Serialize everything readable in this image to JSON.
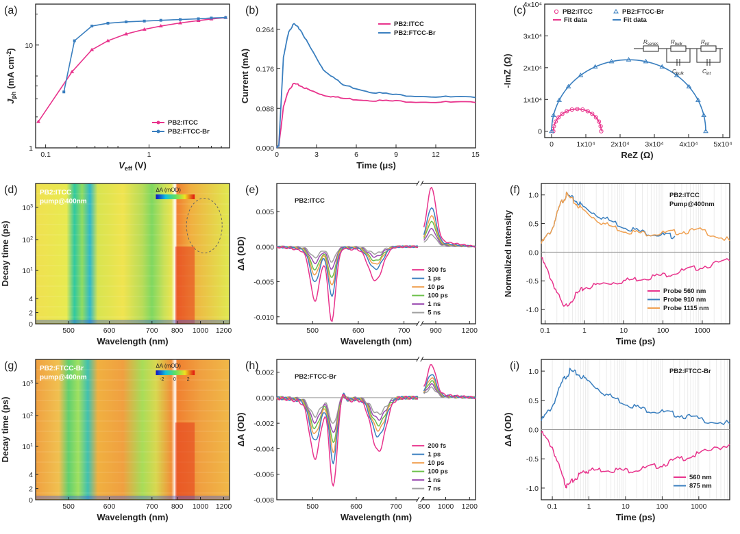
{
  "colors": {
    "pink": "#e8338c",
    "blue": "#3a7fbf",
    "orange": "#f0a050",
    "green": "#6cc04a",
    "purple": "#9a4ab0",
    "gray": "#a0a0a0"
  },
  "chart_data": [
    {
      "id": "a",
      "panel_label": "(a)",
      "type": "line",
      "xscale": "log",
      "yscale": "log",
      "xlabel": "V",
      "xlabel_sub": "eff",
      "xlabel_unit": " (V)",
      "ylabel": "J",
      "ylabel_sub": "ph",
      "ylabel_unit": " (mA cm",
      "ylabel_sup": "-2",
      "ylabel_end": ")",
      "xlim": [
        0.08,
        6
      ],
      "ylim": [
        1,
        25
      ],
      "xticks": [
        0.1,
        1
      ],
      "xtick_labels": [
        "0.1",
        "1"
      ],
      "yticks": [
        1,
        10
      ],
      "ytick_labels": [
        "1",
        "10"
      ],
      "legend": [
        "PB2:ITCC",
        "PB2:FTCC-Br"
      ],
      "legend_position": "lower-right",
      "series": [
        {
          "name": "PB2:ITCC",
          "color": "pink",
          "marker": "triangle",
          "x": [
            0.085,
            0.18,
            0.28,
            0.4,
            0.6,
            0.9,
            1.3,
            2,
            3,
            4,
            5.5
          ],
          "y": [
            1.8,
            5.5,
            9.0,
            11.0,
            12.8,
            14.2,
            15.3,
            16.4,
            17.3,
            17.9,
            18.5
          ]
        },
        {
          "name": "PB2:FTCC-Br",
          "color": "blue",
          "marker": "square",
          "x": [
            0.15,
            0.19,
            0.28,
            0.4,
            0.6,
            0.9,
            1.3,
            2,
            3,
            4,
            5.5
          ],
          "y": [
            3.5,
            11.0,
            15.3,
            16.3,
            16.8,
            17.1,
            17.4,
            17.7,
            18.0,
            18.3,
            18.5
          ]
        }
      ]
    },
    {
      "id": "b",
      "panel_label": "(b)",
      "type": "line",
      "xlabel": "Time (μs)",
      "ylabel": "Current (mA)",
      "xlim": [
        0,
        15
      ],
      "ylim": [
        0,
        0.32
      ],
      "xticks": [
        0,
        3,
        6,
        9,
        12,
        15
      ],
      "xtick_labels": [
        "0",
        "3",
        "6",
        "9",
        "12",
        "15"
      ],
      "yticks": [
        0,
        0.088,
        0.176,
        0.264
      ],
      "ytick_labels": [
        "0.000",
        "0.088",
        "0.176",
        "0.264"
      ],
      "legend": [
        "PB2:ITCC",
        "PB2:FTCC-Br"
      ],
      "legend_position": "top-right",
      "series": [
        {
          "name": "PB2:ITCC",
          "color": "pink",
          "x": [
            0,
            0.15,
            0.5,
            0.9,
            1.3,
            1.8,
            2.5,
            3.5,
            5,
            7,
            9,
            12,
            15
          ],
          "y": [
            0,
            0.005,
            0.09,
            0.13,
            0.143,
            0.138,
            0.128,
            0.118,
            0.11,
            0.106,
            0.104,
            0.102,
            0.101
          ]
        },
        {
          "name": "PB2:FTCC-Br",
          "color": "blue",
          "x": [
            0,
            0.15,
            0.5,
            0.9,
            1.3,
            1.8,
            2.5,
            3.5,
            5,
            7,
            9,
            12,
            15
          ],
          "y": [
            0,
            0.005,
            0.2,
            0.26,
            0.276,
            0.262,
            0.225,
            0.175,
            0.14,
            0.125,
            0.118,
            0.114,
            0.112
          ]
        }
      ]
    },
    {
      "id": "c",
      "panel_label": "(c)",
      "type": "scatter",
      "xlabel": "ReZ (Ω)",
      "ylabel": "-ImZ (Ω)",
      "xlim": [
        -2000,
        52000
      ],
      "ylim": [
        -2000,
        40000
      ],
      "xticks": [
        0,
        10000,
        20000,
        30000,
        40000,
        50000
      ],
      "xtick_labels": [
        "0",
        "1x10⁴",
        "2x10⁴",
        "3x10⁴",
        "4x10⁴",
        "5x10⁴"
      ],
      "yticks": [
        0,
        10000,
        20000,
        30000,
        40000
      ],
      "ytick_labels": [
        "0",
        "1x10⁴",
        "2x10⁴",
        "3x10⁴",
        "4x10⁴"
      ],
      "legend": [
        "PB2:ITCC",
        "PB2:FTCC-Br",
        "Fit data",
        "Fit data"
      ],
      "legend_position": "top",
      "circuit_labels": [
        "R",
        "series",
        "R",
        "bulk",
        "R",
        "int",
        "C",
        "bulk",
        "C",
        "int"
      ],
      "series": [
        {
          "name": "PB2:ITCC",
          "color": "pink",
          "marker": "circle",
          "center": 7500,
          "radius": 7000
        },
        {
          "name": "PB2:FTCC-Br",
          "color": "blue",
          "marker": "triangle",
          "center": 22500,
          "radius": 22500
        }
      ]
    },
    {
      "id": "d",
      "panel_label": "(d)",
      "type": "heatmap",
      "xlabel": "Wavelength (nm)",
      "ylabel": "Decay time (ps)",
      "xtick_labels": [
        "500",
        "600",
        "700",
        "800",
        "1000",
        "1200"
      ],
      "ytick_labels": [
        "0",
        "2",
        "4",
        "10",
        "10",
        "10"
      ],
      "ytick_sup": [
        "",
        "",
        "",
        "1",
        "2",
        "3"
      ],
      "title": "PB2:ITCC",
      "subtitle": "pump@400nm",
      "colorbar_label": "ΔA (mOD)",
      "bands_nm": [
        520,
        560,
        680,
        900
      ]
    },
    {
      "id": "e",
      "panel_label": "(e)",
      "type": "line",
      "xlabel": "Wavelength (nm)",
      "ylabel": "ΔA (OD)",
      "title": "PB2:ITCC",
      "ylim": [
        -0.011,
        0.009
      ],
      "yticks": [
        -0.01,
        -0.005,
        0.0,
        0.005
      ],
      "ytick_labels": [
        "-0.010",
        "-0.005",
        "0.000",
        "0.005"
      ],
      "xtick_labels": [
        "500",
        "600",
        "700",
        "900",
        "1200"
      ],
      "legend": [
        "300 fs",
        "1 ps",
        "10 ps",
        "100 ps",
        "1 ns",
        "5 ns"
      ],
      "legend_position": "lower-right",
      "series": [
        {
          "name": "300 fs",
          "color": "pink",
          "scale": 1.0
        },
        {
          "name": "1 ps",
          "color": "blue",
          "scale": 0.66
        },
        {
          "name": "10 ps",
          "color": "orange",
          "scale": 0.52
        },
        {
          "name": "100 ps",
          "color": "green",
          "scale": 0.42
        },
        {
          "name": "1 ns",
          "color": "purple",
          "scale": 0.3
        },
        {
          "name": "5 ns",
          "color": "gray",
          "scale": 0.2
        }
      ]
    },
    {
      "id": "f",
      "panel_label": "(f)",
      "type": "line",
      "xscale": "log",
      "xlabel": "Time (ps)",
      "ylabel": "Normalized Intensity",
      "title": "PB2:ITCC",
      "subtitle": "Pump@400nm",
      "xlim": [
        0.08,
        5000
      ],
      "ylim": [
        -1.25,
        1.2
      ],
      "xticks": [
        0.1,
        1,
        10,
        100,
        1000
      ],
      "xtick_labels": [
        "0.1",
        "1",
        "10",
        "100",
        "1000"
      ],
      "yticks": [
        -1.0,
        -0.5,
        0.0,
        0.5,
        1.0
      ],
      "ytick_labels": [
        "-1.0",
        "-0.5",
        "0.0",
        "0.5",
        "1.0"
      ],
      "legend": [
        "Probe 560 nm",
        "Probe 910 nm",
        "Probe 1115 nm"
      ],
      "legend_position": "lower-right",
      "series": [
        {
          "name": "Probe 560 nm",
          "color": "pink",
          "x": [
            0.08,
            0.15,
            0.3,
            0.6,
            1,
            3,
            10,
            30,
            100,
            300,
            1000,
            5000
          ],
          "y": [
            -0.1,
            -0.5,
            -0.98,
            -0.75,
            -0.62,
            -0.55,
            -0.5,
            -0.45,
            -0.4,
            -0.33,
            -0.25,
            -0.15
          ]
        },
        {
          "name": "Probe 910 nm",
          "color": "blue",
          "x": [
            0.08,
            0.15,
            0.25,
            0.35,
            0.6,
            1,
            3,
            10,
            30,
            100,
            200
          ],
          "y": [
            0.15,
            0.4,
            0.85,
            1.0,
            0.9,
            0.78,
            0.6,
            0.45,
            0.35,
            0.3,
            0.28
          ]
        },
        {
          "name": "Probe 1115 nm",
          "color": "orange",
          "x": [
            0.08,
            0.15,
            0.25,
            0.35,
            0.6,
            1,
            3,
            10,
            30,
            100,
            300,
            1000,
            5000
          ],
          "y": [
            0.15,
            0.4,
            0.85,
            1.0,
            0.85,
            0.72,
            0.5,
            0.38,
            0.33,
            0.33,
            0.36,
            0.38,
            0.2
          ]
        }
      ]
    },
    {
      "id": "g",
      "panel_label": "(g)",
      "type": "heatmap",
      "xlabel": "Wavelength (nm)",
      "ylabel": "Decay time (ps)",
      "xtick_labels": [
        "500",
        "600",
        "700",
        "800",
        "1000",
        "1200"
      ],
      "ytick_labels": [
        "0",
        "2",
        "4",
        "10",
        "10",
        "10"
      ],
      "ytick_sup": [
        "",
        "",
        "",
        "1",
        "2",
        "3"
      ],
      "title": "PB2:FTCC-Br",
      "subtitle": "pump@400nm",
      "colorbar_label": "ΔA (mOD)",
      "colorbar_ticks": [
        "-2",
        "0",
        "2"
      ],
      "bands_nm": [
        520,
        560,
        680
      ]
    },
    {
      "id": "h",
      "panel_label": "(h)",
      "type": "line",
      "xlabel": "Wavelength (nm)",
      "ylabel": "ΔA (OD)",
      "title": "PB2:FTCC-Br",
      "ylim": [
        -0.008,
        0.003
      ],
      "yticks": [
        -0.008,
        -0.006,
        -0.004,
        -0.002,
        0.0,
        0.002
      ],
      "ytick_labels": [
        "-0.008",
        "-0.006",
        "-0.004",
        "-0.002",
        "0.000",
        "0.002"
      ],
      "xtick_labels": [
        "500",
        "600",
        "700",
        "800",
        "1000",
        "1200"
      ],
      "legend": [
        "200 fs",
        "1 ps",
        "10 ps",
        "100 ps",
        "1 ns",
        "7 ns"
      ],
      "legend_position": "lower-right",
      "series": [
        {
          "name": "200 fs",
          "color": "pink",
          "scale": 1.0
        },
        {
          "name": "1 ps",
          "color": "blue",
          "scale": 0.72
        },
        {
          "name": "10 ps",
          "color": "orange",
          "scale": 0.6
        },
        {
          "name": "100 ps",
          "color": "green",
          "scale": 0.5
        },
        {
          "name": "1 ns",
          "color": "purple",
          "scale": 0.4
        },
        {
          "name": "7 ns",
          "color": "gray",
          "scale": 0.3
        }
      ]
    },
    {
      "id": "i",
      "panel_label": "(i)",
      "type": "line",
      "xscale": "log",
      "xlabel": "Time (ps)",
      "ylabel": "ΔA (OD)",
      "title": "PB2:FTCC-Br",
      "xlim": [
        0.05,
        7000
      ],
      "ylim": [
        -1.2,
        1.2
      ],
      "xticks": [
        0.1,
        1,
        10,
        100,
        1000
      ],
      "xtick_labels": [
        "0.1",
        "1",
        "10",
        "100",
        "1000"
      ],
      "yticks": [
        -1.0,
        -0.5,
        0.0,
        0.5,
        1.0
      ],
      "ytick_labels": [
        "-1.0",
        "-0.5",
        "0.0",
        "0.5",
        "1.0"
      ],
      "legend": [
        "560 nm",
        "875 nm"
      ],
      "legend_position": "lower-right",
      "series": [
        {
          "name": "560 nm",
          "color": "pink",
          "x": [
            0.05,
            0.1,
            0.2,
            0.25,
            0.4,
            0.7,
            1,
            3,
            10,
            30,
            100,
            300,
            1000,
            7000
          ],
          "y": [
            -0.05,
            -0.3,
            -0.85,
            -0.98,
            -0.85,
            -0.72,
            -0.7,
            -0.68,
            -0.7,
            -0.67,
            -0.6,
            -0.5,
            -0.42,
            -0.25
          ]
        },
        {
          "name": "875 nm",
          "color": "blue",
          "x": [
            0.05,
            0.1,
            0.2,
            0.3,
            0.5,
            1,
            3,
            10,
            30,
            100,
            300,
            1000,
            7000
          ],
          "y": [
            0.15,
            0.4,
            0.85,
            1.0,
            0.95,
            0.82,
            0.6,
            0.45,
            0.35,
            0.3,
            0.25,
            0.18,
            0.1
          ]
        }
      ]
    }
  ]
}
